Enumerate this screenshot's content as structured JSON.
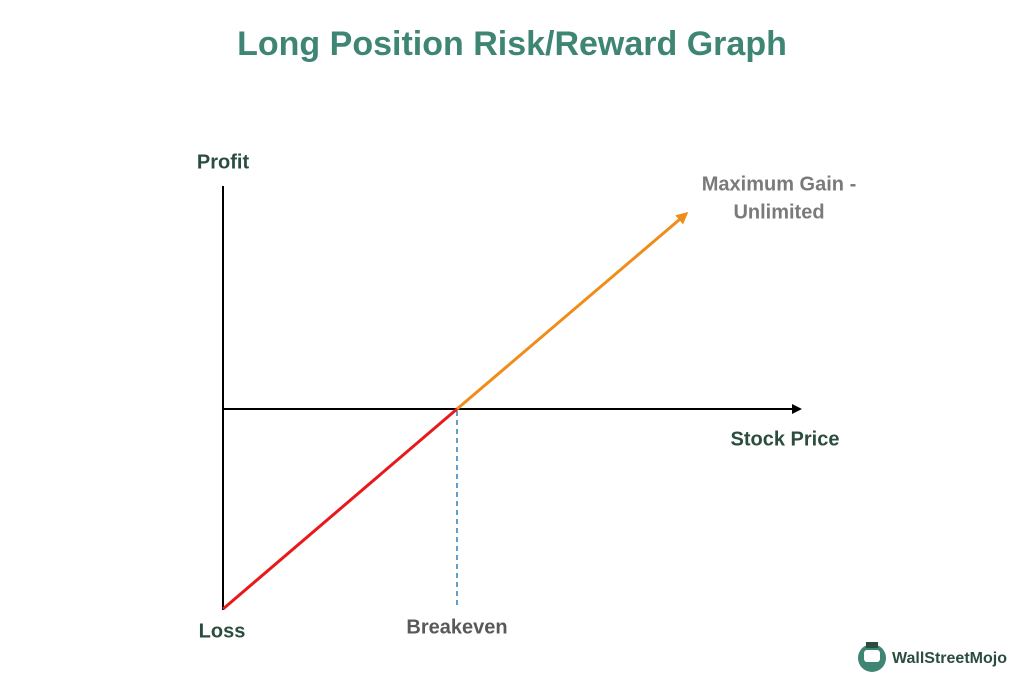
{
  "title": "Long Position Risk/Reward Graph",
  "labels": {
    "y_axis": "Profit",
    "x_axis": "Stock Price",
    "loss": "Loss",
    "breakeven": "Breakeven",
    "max_gain": [
      "Maximum Gain -",
      "Unlimited"
    ]
  },
  "logo": "WallStreetMojo"
}
